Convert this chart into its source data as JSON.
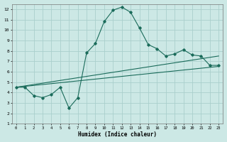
{
  "xlabel": "Humidex (Indice chaleur)",
  "ylabel": "",
  "xlim": [
    -0.5,
    23.5
  ],
  "ylim": [
    1,
    12.5
  ],
  "xticks": [
    0,
    1,
    2,
    3,
    4,
    5,
    6,
    7,
    8,
    9,
    10,
    11,
    12,
    13,
    14,
    15,
    16,
    17,
    18,
    19,
    20,
    21,
    22,
    23
  ],
  "yticks": [
    1,
    2,
    3,
    4,
    5,
    6,
    7,
    8,
    9,
    10,
    11,
    12
  ],
  "bg_color": "#cce8e5",
  "grid_color": "#aacfcc",
  "line_color": "#1a6b5a",
  "line1_x": [
    0,
    1,
    2,
    3,
    4,
    5,
    6,
    7,
    8,
    9,
    10,
    11,
    12,
    13,
    14,
    15,
    16,
    17,
    18,
    19,
    20,
    21,
    22,
    23
  ],
  "line1_y": [
    4.5,
    4.5,
    3.7,
    3.5,
    3.8,
    4.5,
    2.5,
    3.5,
    7.8,
    8.7,
    10.8,
    11.9,
    12.2,
    11.7,
    10.2,
    8.6,
    8.2,
    7.5,
    7.7,
    8.1,
    7.6,
    7.5,
    6.6,
    6.6
  ],
  "line2_x": [
    0,
    23
  ],
  "line2_y": [
    4.5,
    7.5
  ],
  "line3_x": [
    0,
    23
  ],
  "line3_y": [
    4.5,
    6.5
  ]
}
